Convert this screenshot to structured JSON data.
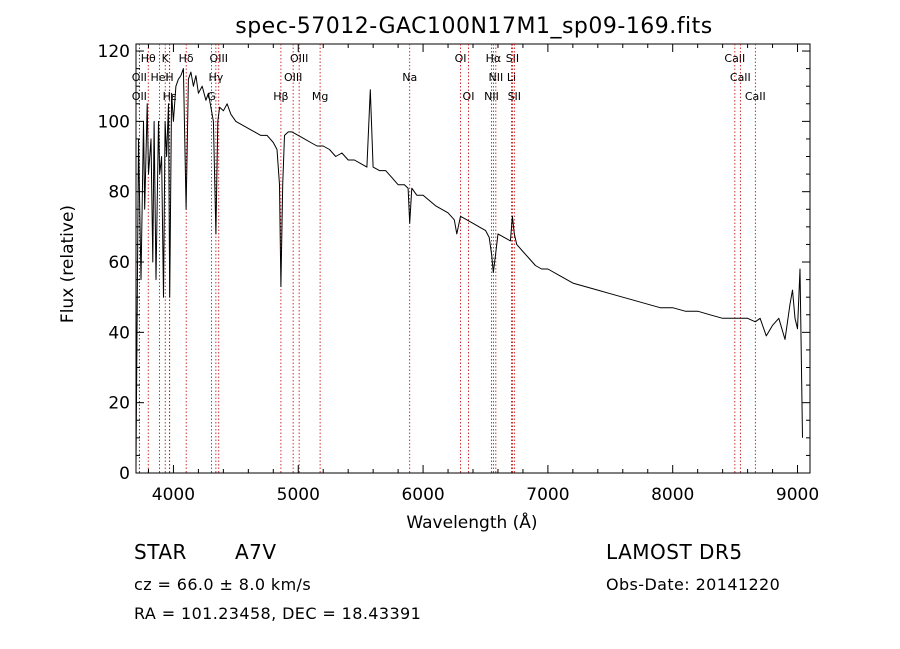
{
  "chart_data": {
    "type": "line",
    "title": "spec-57012-GAC100N17M1_sp09-169.fits",
    "xlabel": "Wavelength (Å)",
    "ylabel": "Flux (relative)",
    "xlim": [
      3700,
      9100
    ],
    "ylim": [
      0,
      122
    ],
    "xticks": [
      4000,
      5000,
      6000,
      7000,
      8000,
      9000
    ],
    "yticks": [
      0,
      20,
      40,
      60,
      80,
      100,
      120
    ],
    "grid": false,
    "line_color": "#000000",
    "marker_color": "#c00000",
    "series": [
      {
        "x": [
          3700,
          3720,
          3740,
          3760,
          3770,
          3790,
          3800,
          3820,
          3835,
          3845,
          3860,
          3880,
          3890,
          3905,
          3920,
          3933,
          3945,
          3960,
          3970,
          3985,
          4000,
          4020,
          4040,
          4060,
          4080,
          4101,
          4120,
          4140,
          4160,
          4180,
          4200,
          4230,
          4260,
          4280,
          4300,
          4320,
          4340,
          4355,
          4370,
          4400,
          4430,
          4460,
          4500,
          4550,
          4600,
          4650,
          4700,
          4750,
          4800,
          4830,
          4850,
          4861,
          4875,
          4890,
          4920,
          4950,
          5000,
          5050,
          5100,
          5150,
          5200,
          5250,
          5300,
          5350,
          5400,
          5450,
          5500,
          5550,
          5577,
          5600,
          5650,
          5700,
          5750,
          5800,
          5850,
          5880,
          5893,
          5910,
          5950,
          6000,
          6100,
          6200,
          6250,
          6270,
          6300,
          6350,
          6400,
          6450,
          6500,
          6530,
          6550,
          6563,
          6580,
          6600,
          6650,
          6700,
          6716,
          6731,
          6750,
          6800,
          6850,
          6900,
          6950,
          7000,
          7100,
          7200,
          7300,
          7400,
          7500,
          7600,
          7700,
          7800,
          7900,
          8000,
          8100,
          8200,
          8300,
          8400,
          8450,
          8500,
          8542,
          8600,
          8662,
          8700,
          8750,
          8800,
          8850,
          8900,
          8940,
          8960,
          8980,
          9000,
          9020,
          9040
        ],
        "y": [
          2,
          95,
          55,
          100,
          75,
          105,
          85,
          95,
          60,
          100,
          55,
          100,
          85,
          90,
          50,
          100,
          90,
          105,
          50,
          108,
          100,
          110,
          112,
          113,
          115,
          75,
          112,
          114,
          110,
          113,
          108,
          110,
          106,
          108,
          104,
          100,
          68,
          100,
          104,
          103,
          105,
          102,
          100,
          99,
          98,
          97,
          96,
          96,
          94,
          92,
          82,
          53,
          82,
          96,
          97,
          97,
          96,
          95,
          94,
          93,
          93,
          92,
          90,
          91,
          89,
          89,
          88,
          87,
          109,
          87,
          86,
          86,
          84,
          82,
          82,
          81,
          71,
          81,
          79,
          79,
          76,
          74,
          72,
          68,
          73,
          72,
          71,
          70,
          69,
          67,
          62,
          57,
          62,
          68,
          67,
          66,
          73,
          68,
          65,
          63,
          61,
          59,
          58,
          58,
          56,
          54,
          53,
          52,
          51,
          50,
          49,
          48,
          47,
          47,
          46,
          46,
          45,
          44,
          44,
          44,
          44,
          44,
          43,
          44,
          39,
          42,
          44,
          38,
          48,
          52,
          44,
          41,
          58,
          10
        ]
      }
    ],
    "lines": [
      {
        "name": "Hθ",
        "x": 3798,
        "row": 1
      },
      {
        "name": "K",
        "x": 3934,
        "row": 1
      },
      {
        "name": "Hδ",
        "x": 4102,
        "row": 1
      },
      {
        "name": "OIII",
        "x": 4363,
        "row": 1
      },
      {
        "name": "OIII",
        "x": 5007,
        "row": 1
      },
      {
        "name": "OI",
        "x": 6300,
        "row": 1
      },
      {
        "name": "Hα",
        "x": 6563,
        "row": 1
      },
      {
        "name": "SII",
        "x": 6716,
        "row": 1
      },
      {
        "name": "CaII",
        "x": 8498,
        "row": 1
      },
      {
        "name": "OII",
        "x": 3727,
        "row": 2
      },
      {
        "name": "HeI",
        "x": 3889,
        "row": 2
      },
      {
        "name": "H",
        "x": 3969,
        "row": 2
      },
      {
        "name": "Hγ",
        "x": 4340,
        "row": 2
      },
      {
        "name": "OIII",
        "x": 4959,
        "row": 2
      },
      {
        "name": "Na",
        "x": 5893,
        "row": 2
      },
      {
        "name": "NII",
        "x": 6583,
        "row": 2
      },
      {
        "name": "Li",
        "x": 6708,
        "row": 2
      },
      {
        "name": "CaII",
        "x": 8542,
        "row": 2
      },
      {
        "name": "OII",
        "x": 3727,
        "row": 3
      },
      {
        "name": "Hε",
        "x": 3970,
        "row": 3
      },
      {
        "name": "G",
        "x": 4305,
        "row": 3
      },
      {
        "name": "Hβ",
        "x": 4861,
        "row": 3
      },
      {
        "name": "Mg",
        "x": 5175,
        "row": 3
      },
      {
        "name": "OI",
        "x": 6364,
        "row": 3
      },
      {
        "name": "NII",
        "x": 6548,
        "row": 3
      },
      {
        "name": "SII",
        "x": 6731,
        "row": 3
      },
      {
        "name": "CaII",
        "x": 8662,
        "row": 3
      }
    ]
  },
  "info": {
    "object_class": "STAR",
    "subclass": "A7V",
    "survey": "LAMOST  DR5",
    "cz": "cz = 66.0 ± 8.0 km/s",
    "obs_date": "Obs-Date: 20141220",
    "coords": "RA = 101.23458, DEC =  18.43391"
  }
}
